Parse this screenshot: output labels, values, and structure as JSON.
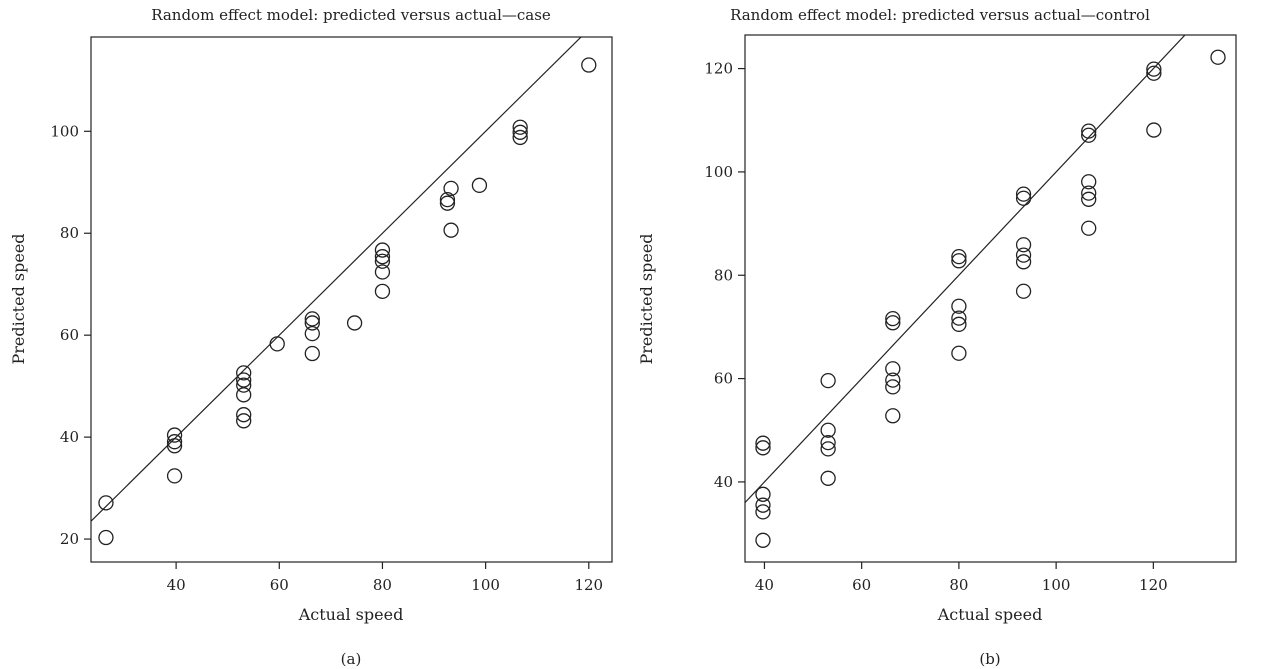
{
  "colors": {
    "ink": "#222222",
    "background": "#ffffff"
  },
  "chart_data": [
    {
      "type": "scatter",
      "title": "Random effect model: predicted versus actual—case",
      "xlabel": "Actual speed",
      "ylabel": "Predicted speed",
      "caption": "(a)",
      "xlim": [
        23.5,
        124.5
      ],
      "ylim": [
        15.5,
        118.5
      ],
      "xticks": [
        40,
        60,
        80,
        100,
        120
      ],
      "yticks": [
        20,
        40,
        60,
        80,
        100
      ],
      "reference_line": {
        "kind": "identity",
        "slope": 1,
        "intercept": 0
      },
      "grid": false,
      "points": [
        {
          "x": 26.4,
          "y": 27.1
        },
        {
          "x": 26.4,
          "y": 20.3
        },
        {
          "x": 39.7,
          "y": 40.4
        },
        {
          "x": 39.7,
          "y": 39.1
        },
        {
          "x": 39.7,
          "y": 38.3
        },
        {
          "x": 39.7,
          "y": 32.4
        },
        {
          "x": 53.1,
          "y": 52.6
        },
        {
          "x": 53.1,
          "y": 51.2
        },
        {
          "x": 53.1,
          "y": 50.2
        },
        {
          "x": 53.1,
          "y": 48.3
        },
        {
          "x": 53.1,
          "y": 44.4
        },
        {
          "x": 53.1,
          "y": 43.2
        },
        {
          "x": 59.6,
          "y": 58.3
        },
        {
          "x": 66.4,
          "y": 63.2
        },
        {
          "x": 66.4,
          "y": 62.4
        },
        {
          "x": 66.4,
          "y": 60.3
        },
        {
          "x": 66.4,
          "y": 56.4
        },
        {
          "x": 74.6,
          "y": 62.4
        },
        {
          "x": 80.0,
          "y": 76.7
        },
        {
          "x": 80.0,
          "y": 75.4
        },
        {
          "x": 80.0,
          "y": 74.5
        },
        {
          "x": 80.0,
          "y": 72.4
        },
        {
          "x": 80.0,
          "y": 68.6
        },
        {
          "x": 92.6,
          "y": 86.6
        },
        {
          "x": 92.6,
          "y": 85.9
        },
        {
          "x": 93.3,
          "y": 88.8
        },
        {
          "x": 93.3,
          "y": 80.6
        },
        {
          "x": 98.8,
          "y": 89.4
        },
        {
          "x": 106.7,
          "y": 100.8
        },
        {
          "x": 106.7,
          "y": 99.8
        },
        {
          "x": 106.7,
          "y": 98.8
        },
        {
          "x": 120.0,
          "y": 113.0
        }
      ]
    },
    {
      "type": "scatter",
      "title": "Random effect model: predicted versus actual—control",
      "xlabel": "Actual speed",
      "ylabel": "Predicted speed",
      "caption": "(b)",
      "xlim": [
        36.0,
        137.0
      ],
      "ylim": [
        24.5,
        126.5
      ],
      "xticks": [
        40,
        60,
        80,
        100,
        120
      ],
      "yticks": [
        40,
        60,
        80,
        100,
        120
      ],
      "reference_line": {
        "kind": "identity",
        "slope": 1,
        "intercept": 0
      },
      "grid": false,
      "points": [
        {
          "x": 39.7,
          "y": 47.5
        },
        {
          "x": 39.7,
          "y": 46.6
        },
        {
          "x": 39.7,
          "y": 37.6
        },
        {
          "x": 39.7,
          "y": 35.5
        },
        {
          "x": 39.7,
          "y": 34.2
        },
        {
          "x": 39.7,
          "y": 28.7
        },
        {
          "x": 53.1,
          "y": 59.6
        },
        {
          "x": 53.1,
          "y": 50.0
        },
        {
          "x": 53.1,
          "y": 47.6
        },
        {
          "x": 53.1,
          "y": 46.4
        },
        {
          "x": 53.1,
          "y": 40.7
        },
        {
          "x": 66.4,
          "y": 71.6
        },
        {
          "x": 66.4,
          "y": 70.8
        },
        {
          "x": 66.4,
          "y": 61.9
        },
        {
          "x": 66.4,
          "y": 59.7
        },
        {
          "x": 66.4,
          "y": 58.4
        },
        {
          "x": 66.4,
          "y": 52.8
        },
        {
          "x": 80.0,
          "y": 83.6
        },
        {
          "x": 80.0,
          "y": 82.8
        },
        {
          "x": 80.0,
          "y": 74.0
        },
        {
          "x": 80.0,
          "y": 71.7
        },
        {
          "x": 80.0,
          "y": 70.5
        },
        {
          "x": 80.0,
          "y": 64.9
        },
        {
          "x": 93.3,
          "y": 95.7
        },
        {
          "x": 93.3,
          "y": 94.9
        },
        {
          "x": 93.3,
          "y": 85.9
        },
        {
          "x": 93.3,
          "y": 83.9
        },
        {
          "x": 93.3,
          "y": 82.6
        },
        {
          "x": 93.3,
          "y": 76.9
        },
        {
          "x": 106.7,
          "y": 107.9
        },
        {
          "x": 106.7,
          "y": 107.1
        },
        {
          "x": 106.7,
          "y": 98.1
        },
        {
          "x": 106.7,
          "y": 95.9
        },
        {
          "x": 106.7,
          "y": 94.7
        },
        {
          "x": 106.7,
          "y": 89.1
        },
        {
          "x": 120.1,
          "y": 119.9
        },
        {
          "x": 120.1,
          "y": 119.1
        },
        {
          "x": 120.1,
          "y": 108.1
        },
        {
          "x": 133.3,
          "y": 122.2
        }
      ]
    }
  ]
}
